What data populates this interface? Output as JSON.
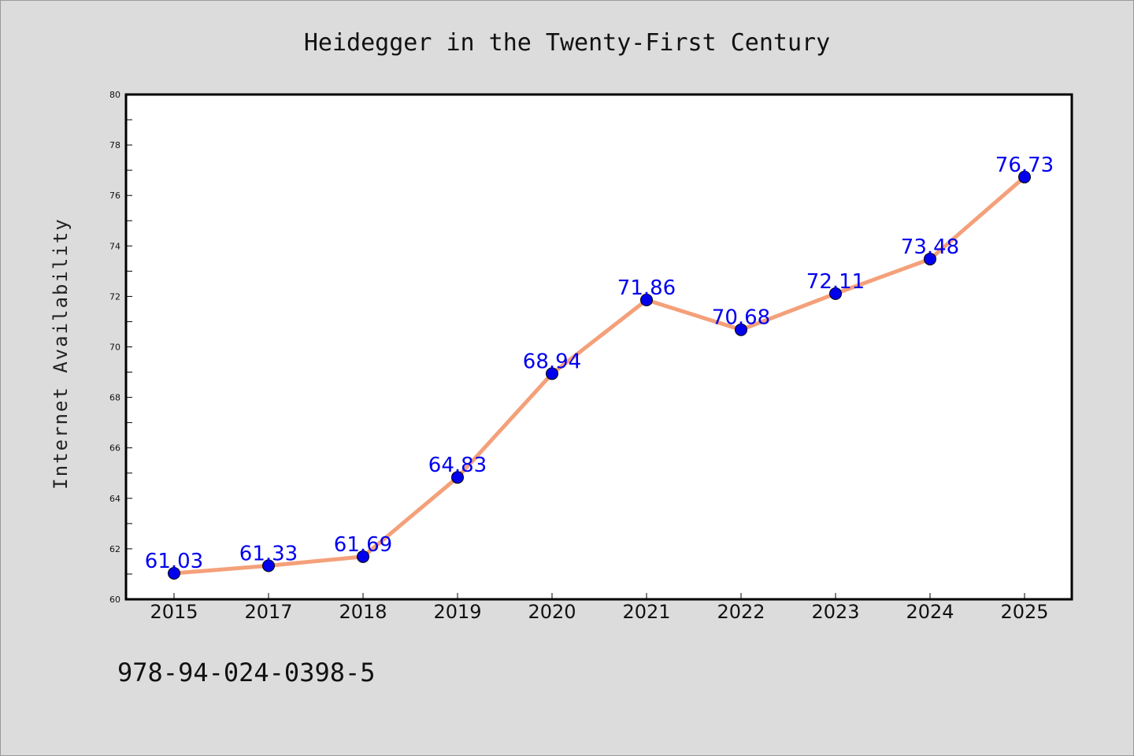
{
  "chart_data": {
    "type": "line",
    "title": "Heidegger in the Twenty-First Century",
    "xlabel": "",
    "ylabel": "Internet Availability",
    "categories": [
      "2015",
      "2017",
      "2018",
      "2019",
      "2020",
      "2021",
      "2022",
      "2023",
      "2024",
      "2025"
    ],
    "series": [
      {
        "values": [
          61.03,
          61.33,
          61.69,
          64.83,
          68.94,
          71.86,
          70.68,
          72.11,
          73.48,
          76.73
        ],
        "data_labels": [
          "61.03",
          "61.33",
          "61.69",
          "64.83",
          "68.94",
          "71.86",
          "70.68",
          "72.11",
          "73.48",
          "76.73"
        ],
        "line_color": "#f4a07a",
        "marker_color": "#0000ee"
      }
    ],
    "ylim": [
      60,
      80
    ],
    "yticks": [
      "60",
      "62",
      "64",
      "66",
      "68",
      "70",
      "72",
      "74",
      "76",
      "78",
      "80"
    ],
    "grid": false,
    "legend": "none"
  },
  "footer": {
    "isbn": "978-94-024-0398-5"
  },
  "colors": {
    "background": "#dcdcdc",
    "plot_area": "#ffffff",
    "line": "#f4a07a",
    "marker": "#0000ee",
    "data_label": "#0000ee"
  }
}
